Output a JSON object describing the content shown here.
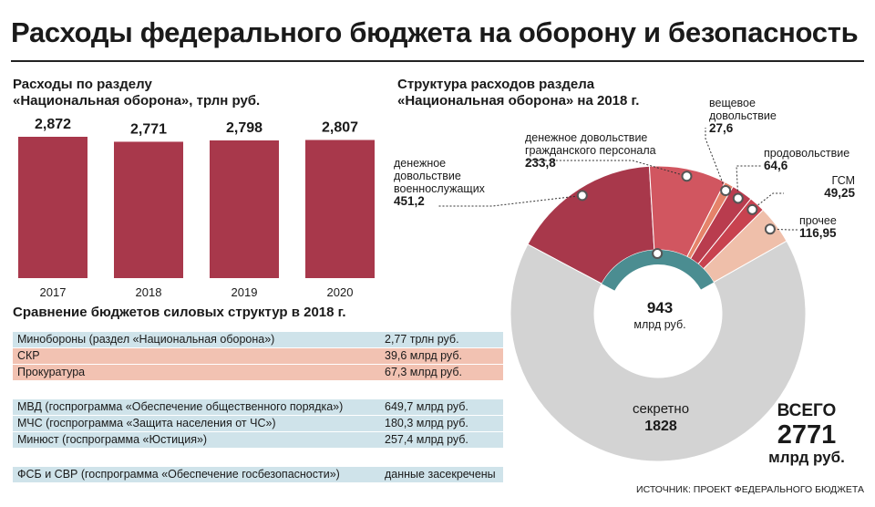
{
  "title": "Расходы федерального бюджета на оборону и безопасность",
  "bar_section": {
    "title_line1": "Расходы по разделу",
    "title_line2": "«Национальная оборона», трлн руб."
  },
  "donut_section": {
    "title_line1": "Структура расходов раздела",
    "title_line2": "«Национальная оборона» на 2018 г.",
    "center_value": "943",
    "center_unit": "млрд руб.",
    "secret_label": "секретно",
    "secret_value": "1828",
    "total_label": "ВСЕГО",
    "total_value": "2771",
    "total_unit": "млрд руб."
  },
  "comparison": {
    "title": "Сравнение бюджетов силовых структур в 2018 г.",
    "rows": [
      {
        "name": "Минобороны (раздел «Национальная оборона»)",
        "value": "2,77 трлн руб."
      },
      {
        "name": "СКР",
        "value": "39,6 млрд руб."
      },
      {
        "name": "Прокуратура",
        "value": "67,3 млрд руб."
      },
      {
        "name": "МВД (госпрограмма «Обеспечение общественного порядка»)",
        "value": "649,7 млрд руб."
      },
      {
        "name": "МЧС (госпрограмма «Защита населения от ЧС»)",
        "value": "180,3 млрд руб."
      },
      {
        "name": "Минюст (госпрограмма «Юстиция»)",
        "value": "257,4 млрд руб."
      },
      {
        "name": "ФСБ и СВР (госпрограмма «Обеспечение госбезопасности»)",
        "value": "данные засекречены"
      }
    ]
  },
  "source": "ИСТОЧНИК: ПРОЕКТ ФЕДЕРАЛЬНОГО БЮДЖЕТА",
  "colors": {
    "bar": "#a8384b",
    "military": "#a8384b",
    "civil": "#d15660",
    "clothing": "#e5836a",
    "food": "#b93c4e",
    "fuel": "#c8424f",
    "other": "#efbfaa",
    "secret": "#d3d3d3",
    "teal": "#4b8d91"
  },
  "chart_data": [
    {
      "type": "bar",
      "title": "Расходы по разделу «Национальная оборона», трлн руб.",
      "categories": [
        "2017",
        "2018",
        "2019",
        "2020"
      ],
      "values": [
        2.872,
        2.771,
        2.798,
        2.807
      ],
      "value_labels": [
        "2,872",
        "2,771",
        "2,798",
        "2,807"
      ],
      "ylim": [
        0,
        2.872
      ]
    },
    {
      "type": "pie",
      "title": "Структура расходов раздела «Национальная оборона» на 2018 г.",
      "slices": [
        {
          "label": "денежное довольствие военнослужащих",
          "value": 451.2,
          "value_label": "451,2"
        },
        {
          "label": "денежное довольствие гражданского персонала",
          "value": 233.8,
          "value_label": "233,8"
        },
        {
          "label": "вещевое довольствие",
          "value": 27.6,
          "value_label": "27,6"
        },
        {
          "label": "продовольствие",
          "value": 64.6,
          "value_label": "64,6"
        },
        {
          "label": "ГСМ",
          "value": 49.25,
          "value_label": "49,25"
        },
        {
          "label": "прочее",
          "value": 116.95,
          "value_label": "116,95"
        },
        {
          "label": "секретно",
          "value": 1828,
          "value_label": "1828"
        }
      ],
      "open_subtotal": 943,
      "total": 2771
    }
  ]
}
